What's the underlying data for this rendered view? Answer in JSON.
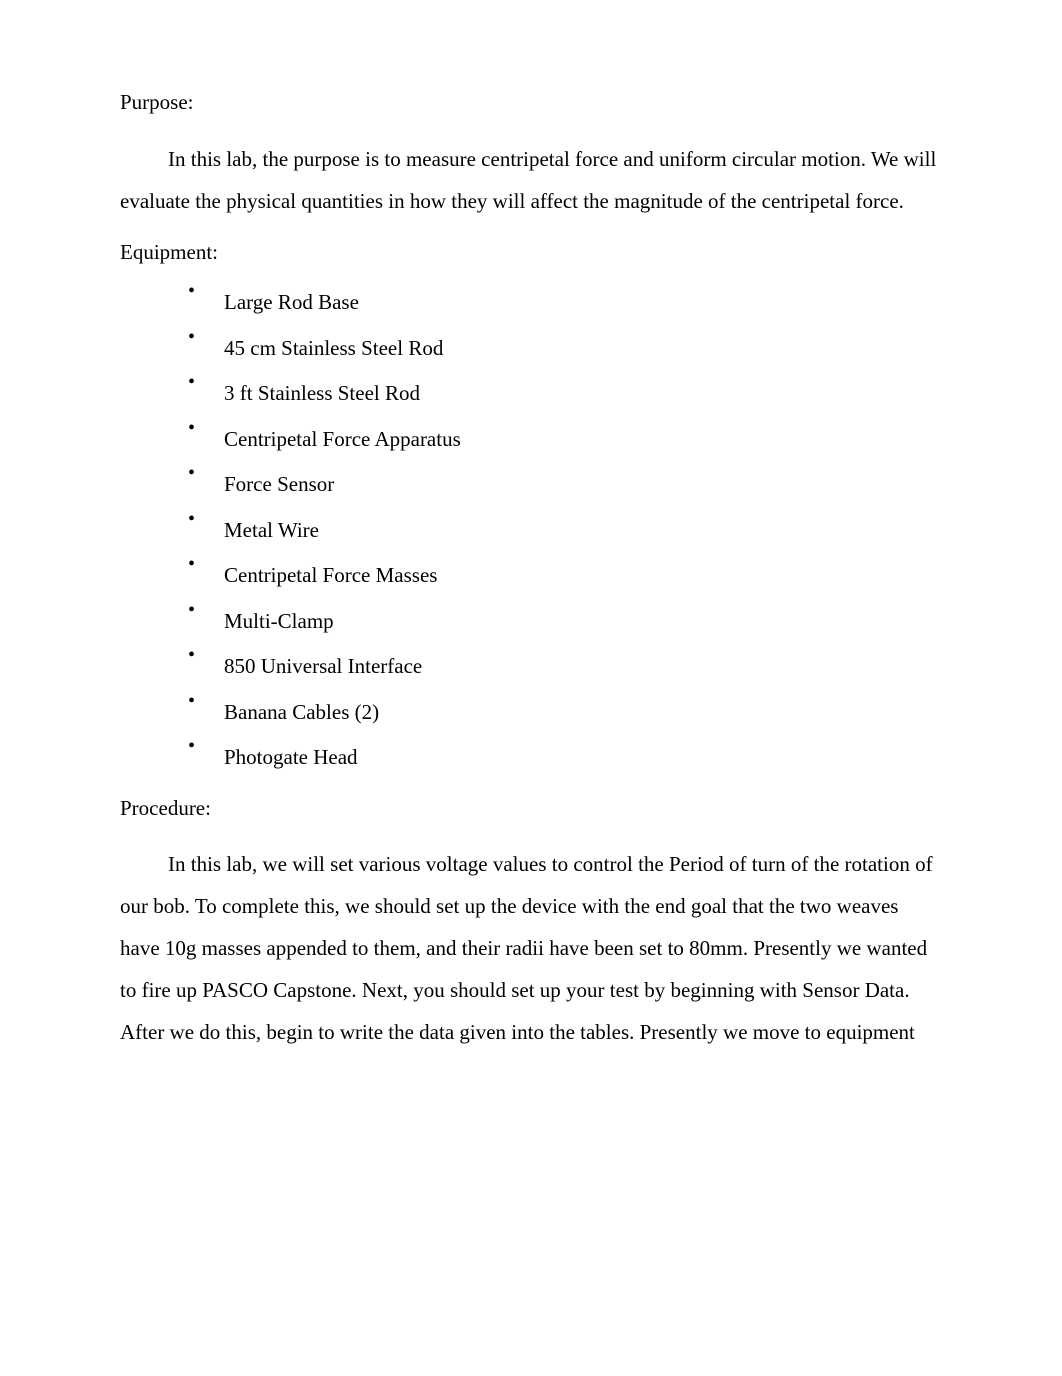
{
  "headings": {
    "purpose": "Purpose:",
    "equipment": "Equipment:",
    "procedure": "Procedure:"
  },
  "purpose_paragraph": "In this lab, the purpose is to measure centripetal force and uniform circular motion. We will evaluate the physical quantities in how they will affect the magnitude of the centripetal force.",
  "equipment_items": [
    "Large Rod Base",
    " 45 cm Stainless Steel Rod",
    "3 ft Stainless Steel Rod",
    " Centripetal Force Apparatus",
    "Force Sensor",
    "Metal Wire",
    "Centripetal Force Masses",
    "Multi-Clamp",
    "850 Universal Interface",
    "Banana Cables (2)",
    "Photogate Head"
  ],
  "procedure_paragraph": "In this lab, we will set various voltage values to control the Period of turn of the rotation of our bob. To complete this, we should set up the device with the end goal that the two weaves have 10g masses appended to them, and their radii have been set to 80mm. Presently we wanted to fire up PASCO Capstone. Next, you should set up your test by beginning with Sensor Data. After we do this, begin to write the data given into the tables. Presently we move to equipment"
}
